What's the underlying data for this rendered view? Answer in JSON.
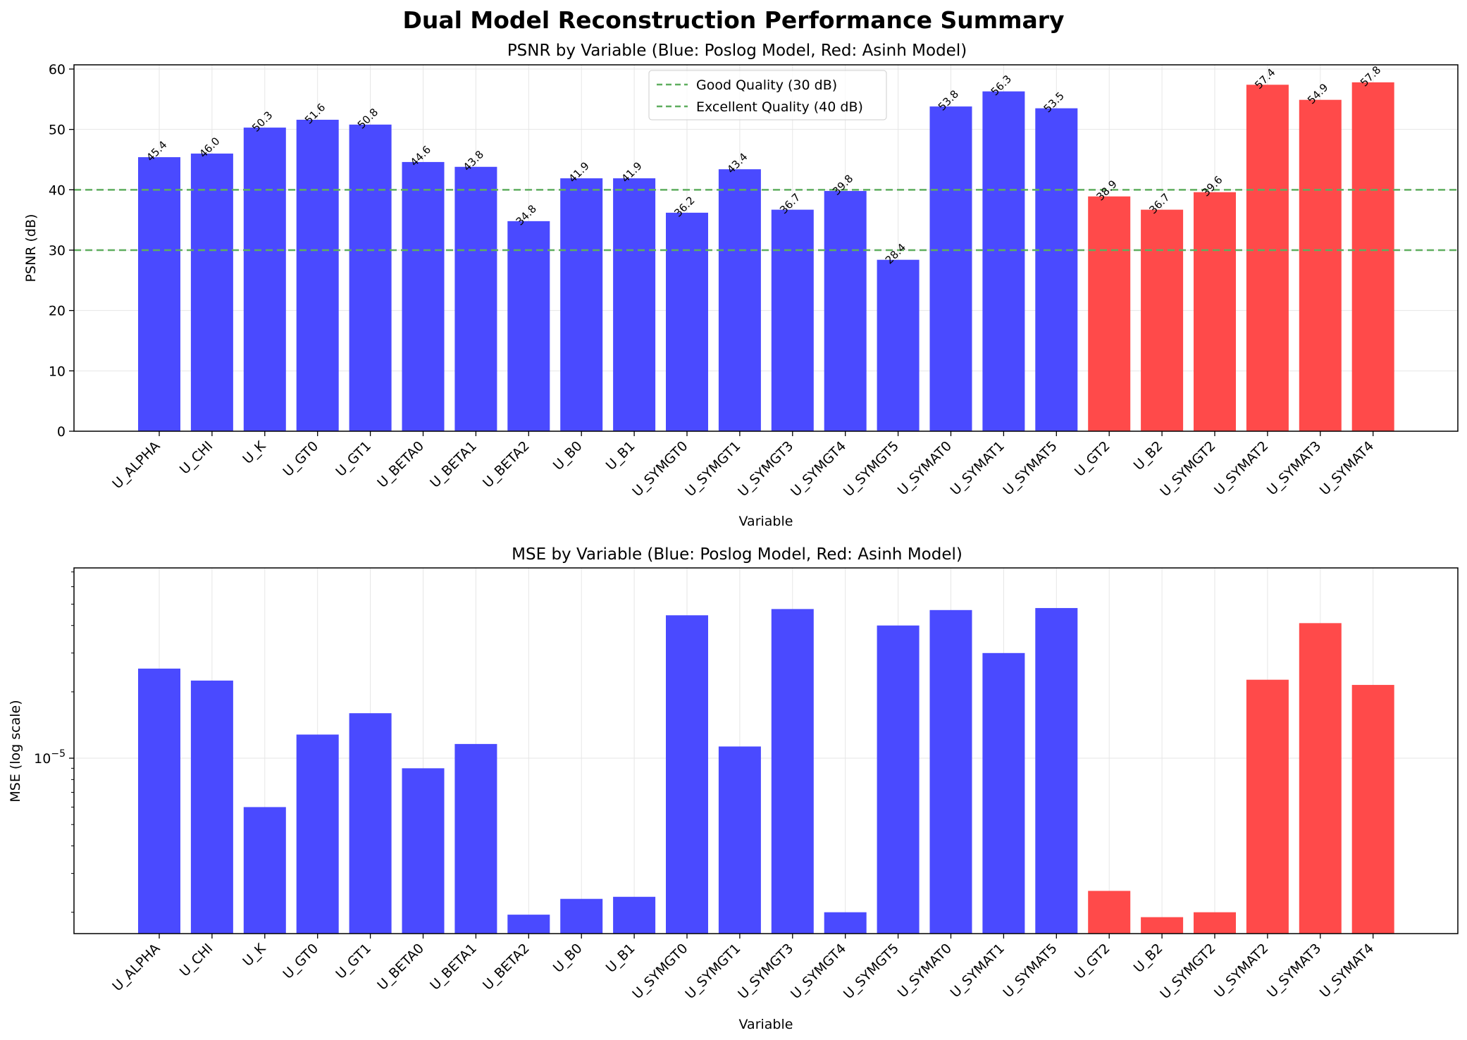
{
  "figure": {
    "title": "Dual Model Reconstruction Performance Summary"
  },
  "colors": {
    "poslog": "#4a4aff",
    "asinh": "#ff4a4a",
    "reference": "#5fae5f",
    "grid": "#e6e6e6"
  },
  "chart_data": [
    {
      "type": "bar",
      "title": "PSNR by Variable (Blue: Poslog Model, Red: Asinh Model)",
      "xlabel": "Variable",
      "ylabel": "PSNR (dB)",
      "ylim": [
        0,
        60.7
      ],
      "yticks": [
        0,
        10,
        20,
        30,
        40,
        50,
        60
      ],
      "grid": true,
      "legend_position": "upper center",
      "categories": [
        "U_ALPHA",
        "U_CHI",
        "U_K",
        "U_GT0",
        "U_GT1",
        "U_BETA0",
        "U_BETA1",
        "U_BETA2",
        "U_B0",
        "U_B1",
        "U_SYMGT0",
        "U_SYMGT1",
        "U_SYMGT3",
        "U_SYMGT4",
        "U_SYMGT5",
        "U_SYMAT0",
        "U_SYMAT1",
        "U_SYMAT5",
        "U_GT2",
        "U_B2",
        "U_SYMGT2",
        "U_SYMAT2",
        "U_SYMAT3",
        "U_SYMAT4"
      ],
      "values": [
        45.4,
        46.0,
        50.3,
        51.6,
        50.8,
        44.6,
        43.8,
        34.8,
        41.9,
        41.9,
        36.2,
        43.4,
        36.7,
        39.8,
        28.4,
        53.8,
        56.3,
        53.5,
        38.9,
        36.7,
        39.6,
        57.4,
        54.9,
        57.8
      ],
      "value_labels": [
        "45.4",
        "46.0",
        "50.3",
        "51.6",
        "50.8",
        "44.6",
        "43.8",
        "34.8",
        "41.9",
        "41.9",
        "36.2",
        "43.4",
        "36.7",
        "39.8",
        "28.4",
        "53.8",
        "56.3",
        "53.5",
        "38.9",
        "36.7",
        "39.6",
        "57.4",
        "54.9",
        "57.8"
      ],
      "model": [
        "poslog",
        "poslog",
        "poslog",
        "poslog",
        "poslog",
        "poslog",
        "poslog",
        "poslog",
        "poslog",
        "poslog",
        "poslog",
        "poslog",
        "poslog",
        "poslog",
        "poslog",
        "poslog",
        "poslog",
        "poslog",
        "asinh",
        "asinh",
        "asinh",
        "asinh",
        "asinh",
        "asinh"
      ],
      "reference_lines": [
        {
          "name": "Good Quality (30 dB)",
          "y": 30
        },
        {
          "name": "Excellent Quality (40 dB)",
          "y": 40
        }
      ]
    },
    {
      "type": "bar",
      "title": "MSE by Variable (Blue: Poslog Model, Red: Asinh Model)",
      "xlabel": "Variable",
      "ylabel": "MSE (log scale)",
      "yscale": "log",
      "ylim": [
        1.6e-06,
        7.3e-05
      ],
      "ytick_value": 1e-05,
      "ytick_base": "10",
      "ytick_exponent": "−5",
      "grid": true,
      "categories": [
        "U_ALPHA",
        "U_CHI",
        "U_K",
        "U_GT0",
        "U_GT1",
        "U_BETA0",
        "U_BETA1",
        "U_BETA2",
        "U_B0",
        "U_B1",
        "U_SYMGT0",
        "U_SYMGT1",
        "U_SYMGT3",
        "U_SYMGT4",
        "U_SYMGT5",
        "U_SYMAT0",
        "U_SYMAT1",
        "U_SYMAT5",
        "U_GT2",
        "U_B2",
        "U_SYMGT2",
        "U_SYMAT2",
        "U_SYMAT3",
        "U_SYMAT4"
      ],
      "values": [
        2.55e-05,
        2.25e-05,
        6e-06,
        1.28e-05,
        1.6e-05,
        9e-06,
        1.16e-05,
        1.95e-06,
        2.3e-06,
        2.35e-06,
        4.45e-05,
        1.13e-05,
        4.75e-05,
        2e-06,
        4e-05,
        4.7e-05,
        3e-05,
        4.8e-05,
        2.5e-06,
        1.9e-06,
        2e-06,
        2.27e-05,
        4.1e-05,
        2.15e-05
      ],
      "model": [
        "poslog",
        "poslog",
        "poslog",
        "poslog",
        "poslog",
        "poslog",
        "poslog",
        "poslog",
        "poslog",
        "poslog",
        "poslog",
        "poslog",
        "poslog",
        "poslog",
        "poslog",
        "poslog",
        "poslog",
        "poslog",
        "asinh",
        "asinh",
        "asinh",
        "asinh",
        "asinh",
        "asinh"
      ]
    }
  ]
}
